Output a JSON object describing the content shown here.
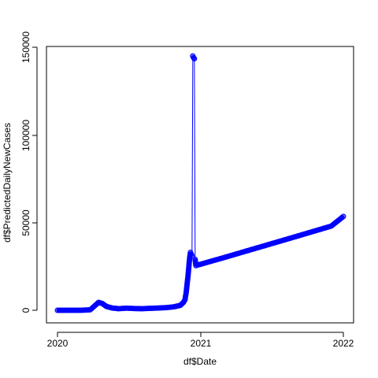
{
  "chart_data": {
    "type": "line",
    "title": "",
    "xlabel": "df$Date",
    "ylabel": "df$PredictedDailyNewCases",
    "x_ticks": [
      "2020",
      "2021",
      "2022"
    ],
    "y_ticks": [
      "0",
      "50000",
      "100000",
      "150000"
    ],
    "ylim": [
      0,
      150000
    ],
    "xlim": [
      "2020-01-01",
      "2022-01-01"
    ],
    "grid": false,
    "legend": "none",
    "series_color": "#0000ff",
    "series": [
      {
        "values": [
          {
            "x": "2020-01-01",
            "y": 0
          },
          {
            "x": "2020-02-01",
            "y": 0
          },
          {
            "x": "2020-03-01",
            "y": 0
          },
          {
            "x": "2020-03-25",
            "y": 300
          },
          {
            "x": "2020-04-05",
            "y": 2500
          },
          {
            "x": "2020-04-15",
            "y": 4500
          },
          {
            "x": "2020-04-25",
            "y": 3800
          },
          {
            "x": "2020-05-05",
            "y": 2200
          },
          {
            "x": "2020-05-20",
            "y": 1300
          },
          {
            "x": "2020-06-05",
            "y": 900
          },
          {
            "x": "2020-06-25",
            "y": 1200
          },
          {
            "x": "2020-07-15",
            "y": 1000
          },
          {
            "x": "2020-08-05",
            "y": 900
          },
          {
            "x": "2020-08-25",
            "y": 1100
          },
          {
            "x": "2020-09-15",
            "y": 1300
          },
          {
            "x": "2020-10-05",
            "y": 1500
          },
          {
            "x": "2020-10-25",
            "y": 2000
          },
          {
            "x": "2020-11-10",
            "y": 2800
          },
          {
            "x": "2020-11-18",
            "y": 4500
          },
          {
            "x": "2020-11-22",
            "y": 6000
          },
          {
            "x": "2020-11-25",
            "y": 10000
          },
          {
            "x": "2020-11-28",
            "y": 16000
          },
          {
            "x": "2020-11-30",
            "y": 20000
          },
          {
            "x": "2020-12-02",
            "y": 25000
          },
          {
            "x": "2020-12-04",
            "y": 30000
          },
          {
            "x": "2020-12-06",
            "y": 33000
          },
          {
            "x": "2020-12-08",
            "y": 32000
          },
          {
            "x": "2020-12-10",
            "y": 31000
          },
          {
            "x": "2020-12-12",
            "y": 145000
          },
          {
            "x": "2020-12-14",
            "y": 144000
          },
          {
            "x": "2020-12-16",
            "y": 143500
          },
          {
            "x": "2020-12-18",
            "y": 29000
          },
          {
            "x": "2020-12-20",
            "y": 25500
          },
          {
            "x": "2021-03-01",
            "y": 30000
          },
          {
            "x": "2021-06-01",
            "y": 36000
          },
          {
            "x": "2021-09-01",
            "y": 42000
          },
          {
            "x": "2021-12-01",
            "y": 48000
          },
          {
            "x": "2022-01-01",
            "y": 53500
          }
        ]
      }
    ]
  }
}
